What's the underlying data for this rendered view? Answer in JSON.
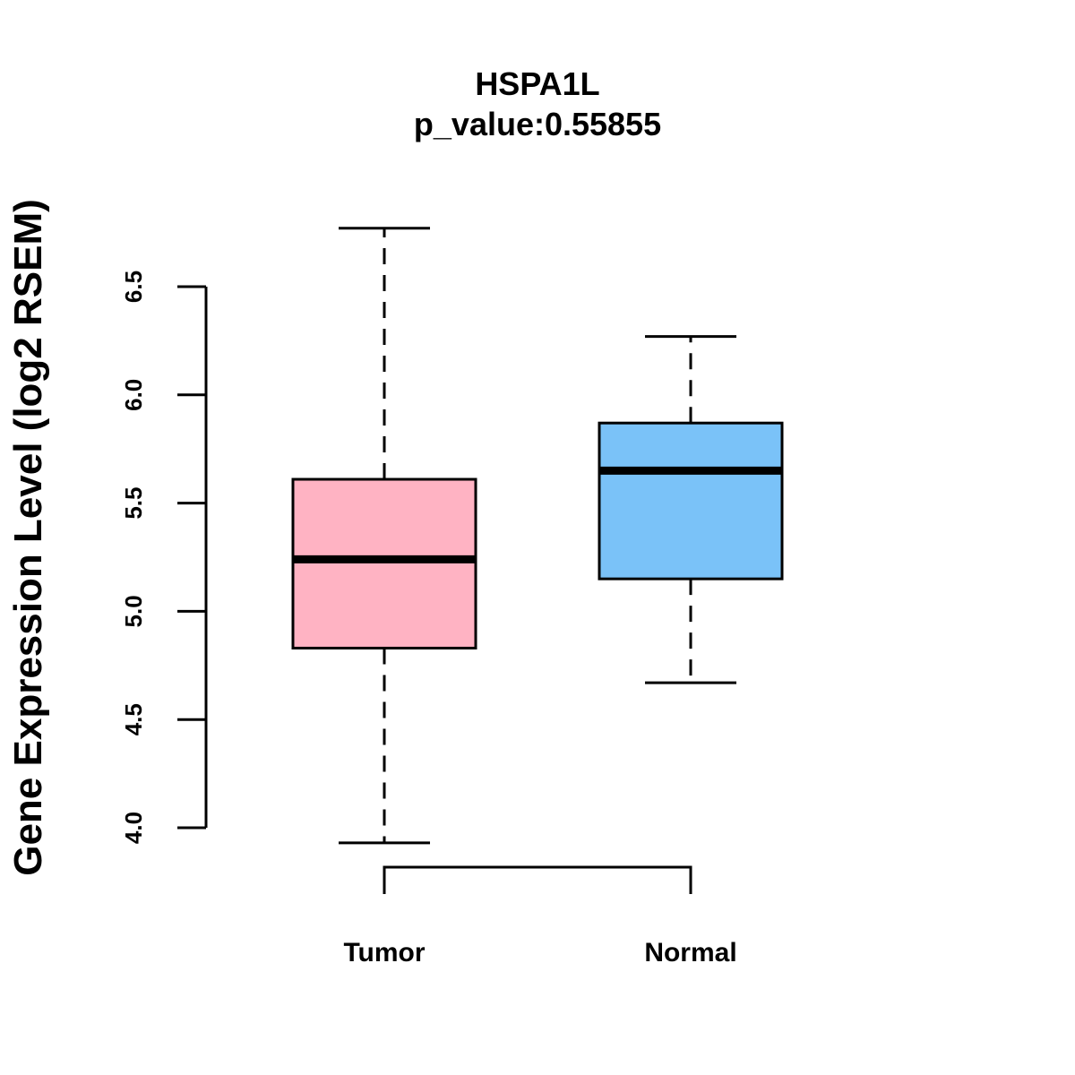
{
  "chart_data": {
    "type": "boxplot",
    "title": "HSPA1L",
    "subtitle": "p_value:0.55855",
    "ylabel": "Gene Expression Level (log2 RSEM)",
    "xlabel": "",
    "ylim": [
      4.0,
      6.5
    ],
    "yticks": [
      "4.0",
      "4.5",
      "5.0",
      "5.5",
      "6.0",
      "6.5"
    ],
    "categories": [
      "Tumor",
      "Normal"
    ],
    "series": [
      {
        "name": "Tumor",
        "color": "#FFB3C3",
        "whisker_low": 3.93,
        "q1": 4.83,
        "median": 5.24,
        "q3": 5.61,
        "whisker_high": 6.77
      },
      {
        "name": "Normal",
        "color": "#7AC2F8",
        "whisker_low": 4.67,
        "q1": 5.15,
        "median": 5.65,
        "q3": 5.87,
        "whisker_high": 6.27
      }
    ],
    "grid": false,
    "legend": "none"
  }
}
